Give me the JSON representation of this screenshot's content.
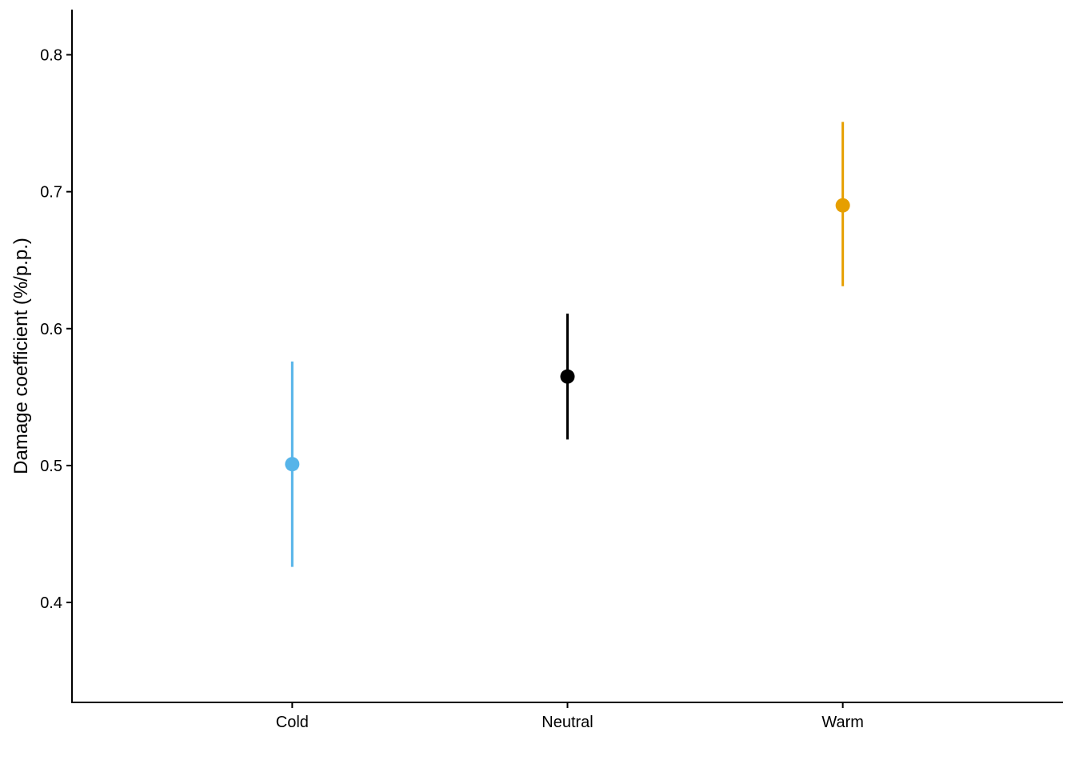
{
  "chart_data": {
    "type": "scatter",
    "title": "",
    "xlabel": "",
    "ylabel": "Damage coefficient (%/p.p.)",
    "categories": [
      "Cold",
      "Neutral",
      "Warm"
    ],
    "points": [
      {
        "category": "Cold",
        "value": 0.501,
        "lower": 0.426,
        "upper": 0.576,
        "color": "#56B4E9"
      },
      {
        "category": "Neutral",
        "value": 0.565,
        "lower": 0.519,
        "upper": 0.611,
        "color": "#000000"
      },
      {
        "category": "Warm",
        "value": 0.69,
        "lower": 0.631,
        "upper": 0.751,
        "color": "#E69F00"
      }
    ],
    "ylim": [
      0.327,
      0.833
    ],
    "yticks": [
      0.4,
      0.5,
      0.6,
      0.7,
      0.8
    ],
    "ytick_labels": [
      "0.4",
      "0.5",
      "0.6",
      "0.7",
      "0.8"
    ],
    "grid": false,
    "legend": "none"
  }
}
